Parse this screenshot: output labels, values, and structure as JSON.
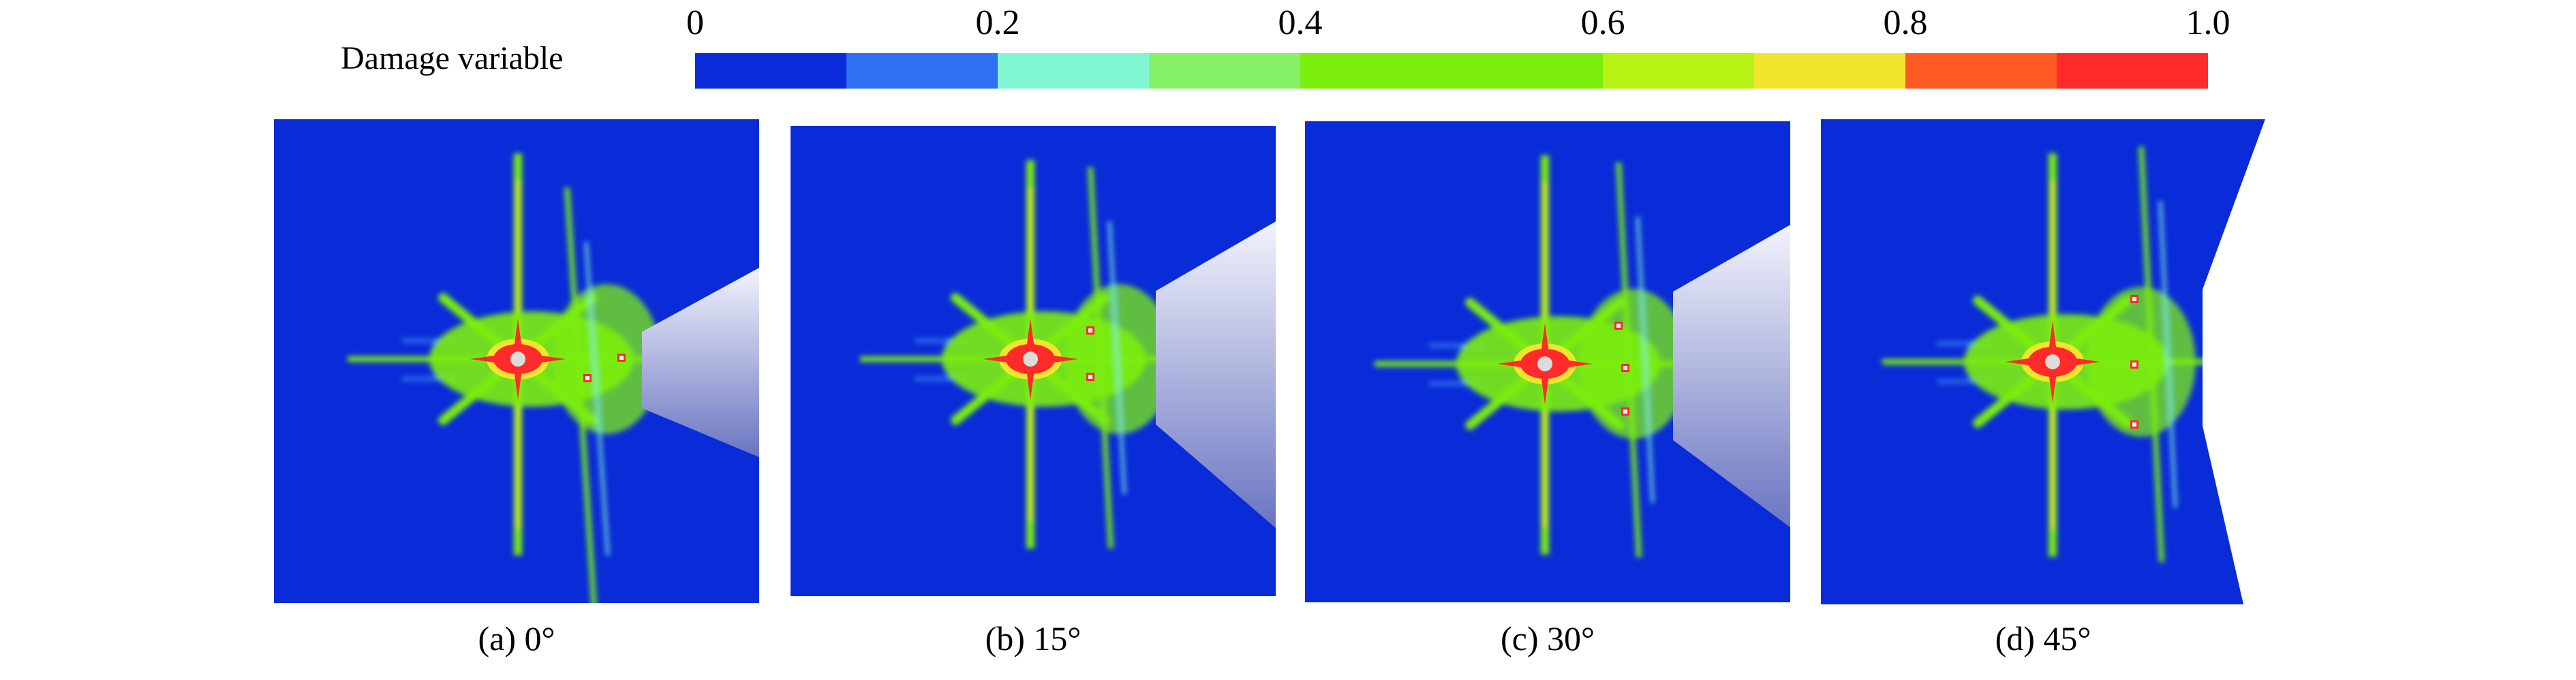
{
  "legend": {
    "title": "Damage variable",
    "ticks": [
      "0",
      "0.2",
      "0.4",
      "0.6",
      "0.8",
      "1.0"
    ],
    "colors": [
      "#0a2bd8",
      "#2e70f0",
      "#80f5d2",
      "#86f067",
      "#7cee0e",
      "#7cee0e",
      "#b6f214",
      "#f3e52e",
      "#ff5a24",
      "#ff2a2a"
    ]
  },
  "colors": {
    "background_blue": "#0a2bd8",
    "damage_green": "#7cee0e",
    "damage_yellow": "#f3e52e",
    "damage_red": "#ff2a2a",
    "cone_light": "#f2f3fb",
    "cone_dark": "#6a75c2"
  },
  "panels": [
    {
      "caption": "(a) 0°"
    },
    {
      "caption": "(b) 15°"
    },
    {
      "caption": "(c) 30°"
    },
    {
      "caption": "(d) 45°"
    }
  ]
}
